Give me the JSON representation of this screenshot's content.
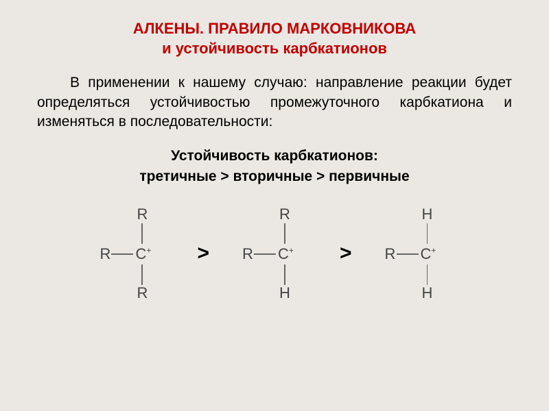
{
  "title": {
    "line1": "АЛКЕНЫ. ПРАВИЛО МАРКОВНИКОВА",
    "line2": "и устойчивость карбкатионов"
  },
  "paragraph": "В применении к нашему случаю: направление реакции будет определяться устойчивостью промежуточного карбкатиона и изменяться в последовательности:",
  "stability": {
    "heading": "Устойчивость карбкатионов:",
    "order": "третичные  >  вторичные  >  первичные"
  },
  "cations": [
    {
      "top": "R",
      "left": "R",
      "center": "C",
      "center_charge": "+",
      "bottom": "R"
    },
    {
      "top": "R",
      "left": "R",
      "center": "C",
      "center_charge": "+",
      "bottom": "H"
    },
    {
      "top": "H",
      "left": "R",
      "center": "C",
      "center_charge": "+",
      "bottom": "H"
    }
  ],
  "comparator": ">",
  "colors": {
    "background": "#ebe8e3",
    "title": "#c00000",
    "text": "#000000",
    "atom": "#444444",
    "bond": "#666666"
  },
  "typography": {
    "title_fontsize": 22,
    "body_fontsize": 21,
    "atom_fontsize": 22,
    "comparator_fontsize": 30,
    "font_family": "Arial"
  }
}
